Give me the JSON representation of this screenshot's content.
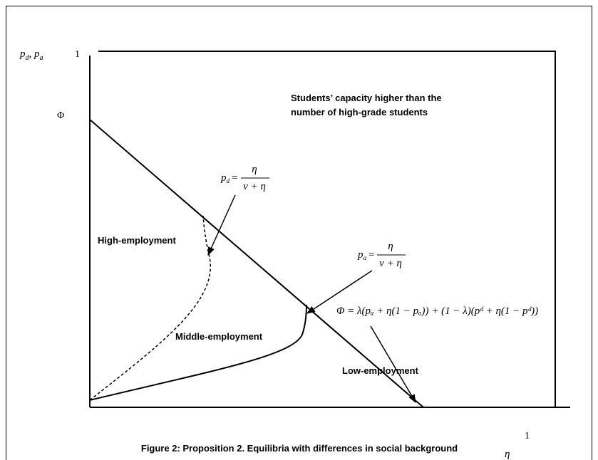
{
  "axes": {
    "y_label": {
      "main1": "p",
      "sub1": "d",
      "sep": ", ",
      "main2": "p",
      "sub2": "a"
    },
    "y_max": "1",
    "y_phi": "Φ",
    "x_max": "1",
    "x_label": "η"
  },
  "annotation": [
    "Students’ capacity higher than the",
    "number of high-grade students"
  ],
  "regions": {
    "high": "High-employment",
    "middle": "Middle-employment",
    "low": "Low-employment"
  },
  "formula_pd": {
    "lhs": "p",
    "sub": "d",
    "eq": "=",
    "numerator": "η",
    "denominator": "ν + η"
  },
  "formula_pa": {
    "lhs": "p",
    "sub": "a",
    "eq": "=",
    "numerator": "η",
    "denominator": "ν + η"
  },
  "formula_phi": "Φ = λ(pₐ + η(1 − pₐ)) + (1 − λ)(pᵈ + η(1 − pᵈ))",
  "caption": "Figure 2: Proposition 2. Equilibria with differences in social background"
}
